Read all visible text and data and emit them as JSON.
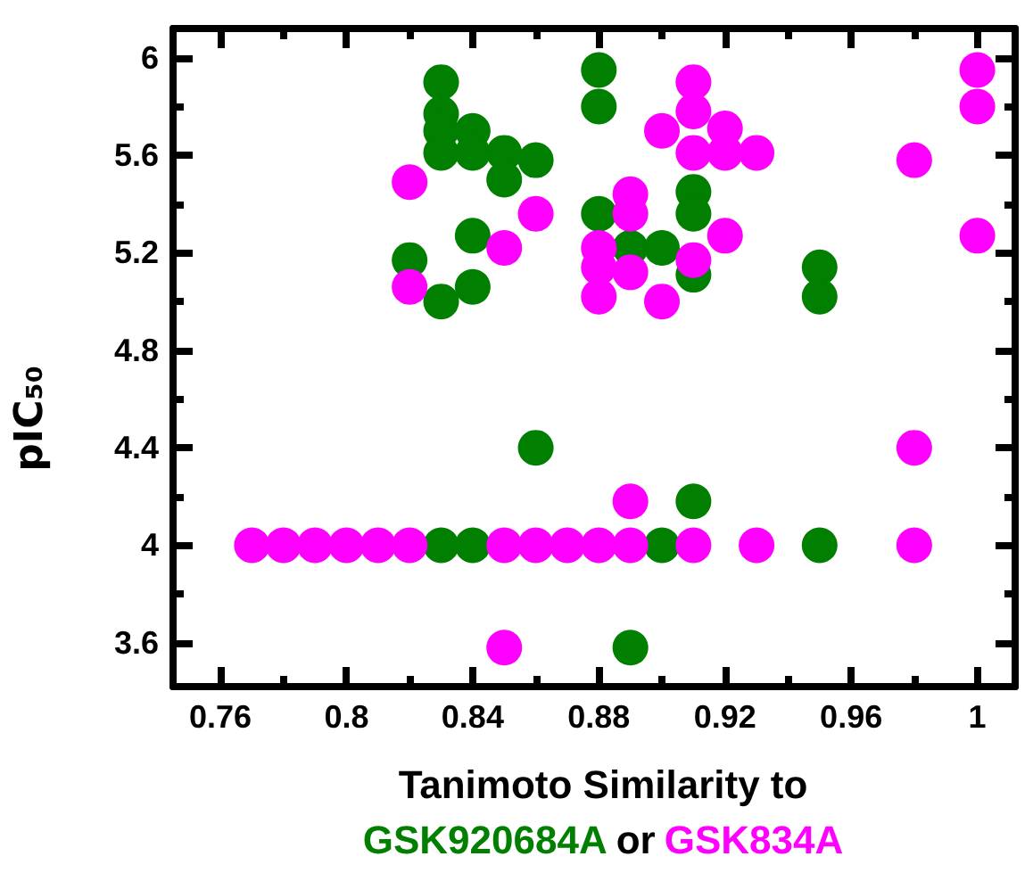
{
  "chart_data": {
    "type": "scatter",
    "xlabel": "Tanimoto Similarity to",
    "ylabel": "pIC₅₀",
    "annotations": [
      "or"
    ],
    "marker": "circle",
    "grid": false,
    "legend": "bottom",
    "xlim": [
      0.745,
      1.012
    ],
    "ylim": [
      3.42,
      6.12
    ],
    "xticks": [
      0.76,
      {
        "value": 0.78,
        "label": null
      },
      0.8,
      {
        "value": 0.82,
        "label": null
      },
      0.84,
      {
        "value": 0.86,
        "label": null
      },
      0.88,
      {
        "value": 0.9,
        "label": null
      },
      0.92,
      {
        "value": 0.94,
        "label": null
      },
      0.96,
      {
        "value": 0.98,
        "label": null
      },
      1
    ],
    "yticks": [
      3.6,
      {
        "value": 3.8,
        "label": null
      },
      4,
      {
        "value": 4.2,
        "label": null
      },
      4.4,
      {
        "value": 4.6,
        "label": null
      },
      4.8,
      {
        "value": 5,
        "label": null
      },
      5.2,
      {
        "value": 5.4,
        "label": null
      },
      5.6,
      {
        "value": 5.8,
        "label": null
      },
      6
    ],
    "series": [
      {
        "name": "GSK920684A",
        "color": "#007f00",
        "x": [
          0.83,
          0.83,
          0.83,
          0.83,
          0.84,
          0.84,
          0.85,
          0.85,
          0.86,
          0.82,
          0.83,
          0.84,
          0.84,
          0.88,
          0.88,
          0.88,
          0.89,
          0.9,
          0.91,
          0.91,
          0.91,
          0.95,
          0.95,
          0.83,
          0.84,
          0.9,
          0.95,
          0.91,
          0.86,
          0.89
        ],
        "values": [
          5.9,
          5.77,
          5.7,
          5.61,
          5.7,
          5.61,
          5.61,
          5.5,
          5.58,
          5.17,
          5.0,
          5.27,
          5.06,
          5.95,
          5.8,
          5.36,
          5.22,
          5.22,
          5.45,
          5.36,
          5.11,
          5.14,
          5.02,
          4,
          4,
          4,
          4,
          4.18,
          4.4,
          3.58
        ]
      },
      {
        "name": "GSK834A",
        "color": "#ff00ff",
        "x": [
          0.82,
          0.82,
          0.85,
          0.86,
          0.88,
          0.88,
          0.88,
          0.89,
          0.89,
          0.89,
          0.9,
          0.9,
          0.91,
          0.91,
          0.91,
          0.91,
          0.92,
          0.92,
          0.92,
          0.93,
          0.98,
          1.0,
          1.0,
          1.0,
          0.77,
          0.78,
          0.79,
          0.8,
          0.81,
          0.82,
          0.85,
          0.86,
          0.87,
          0.88,
          0.89,
          0.91,
          0.93,
          0.98,
          0.89,
          0.98,
          0.85
        ],
        "values": [
          5.49,
          5.06,
          5.22,
          5.36,
          5.22,
          5.14,
          5.02,
          5.44,
          5.36,
          5.12,
          5.7,
          5.0,
          5.9,
          5.78,
          5.61,
          5.17,
          5.71,
          5.61,
          5.27,
          5.61,
          5.58,
          5.95,
          5.8,
          5.27,
          4,
          4,
          4,
          4,
          4,
          4,
          4,
          4,
          4,
          4,
          4,
          4,
          4,
          4,
          4.18,
          4.4,
          3.58
        ]
      }
    ]
  }
}
